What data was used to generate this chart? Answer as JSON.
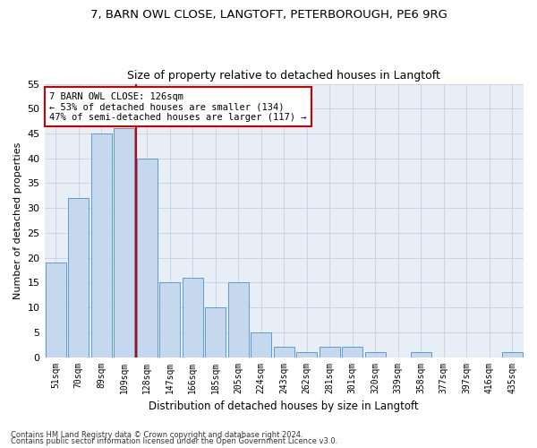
{
  "title1": "7, BARN OWL CLOSE, LANGTOFT, PETERBOROUGH, PE6 9RG",
  "title2": "Size of property relative to detached houses in Langtoft",
  "xlabel": "Distribution of detached houses by size in Langtoft",
  "ylabel": "Number of detached properties",
  "footnote1": "Contains HM Land Registry data © Crown copyright and database right 2024.",
  "footnote2": "Contains public sector information licensed under the Open Government Licence v3.0.",
  "categories": [
    "51sqm",
    "70sqm",
    "89sqm",
    "109sqm",
    "128sqm",
    "147sqm",
    "166sqm",
    "185sqm",
    "205sqm",
    "224sqm",
    "243sqm",
    "262sqm",
    "281sqm",
    "301sqm",
    "320sqm",
    "339sqm",
    "358sqm",
    "377sqm",
    "397sqm",
    "416sqm",
    "435sqm"
  ],
  "values": [
    19,
    32,
    45,
    46,
    40,
    15,
    16,
    10,
    15,
    5,
    2,
    1,
    2,
    2,
    1,
    0,
    1,
    0,
    0,
    0,
    1
  ],
  "bar_color": "#c5d8ed",
  "bar_edge_color": "#5b9bd5",
  "highlight_line_index": 4,
  "highlight_color": "#cc0000",
  "annotation_line1": "7 BARN OWL CLOSE: 126sqm",
  "annotation_line2": "← 53% of detached houses are smaller (134)",
  "annotation_line3": "47% of semi-detached houses are larger (117) →",
  "annotation_box_color": "#cc0000",
  "ylim": [
    0,
    55
  ],
  "yticks": [
    0,
    5,
    10,
    15,
    20,
    25,
    30,
    35,
    40,
    45,
    50,
    55
  ],
  "grid_color": "#c8d4e8",
  "bg_color": "#e8eef6"
}
